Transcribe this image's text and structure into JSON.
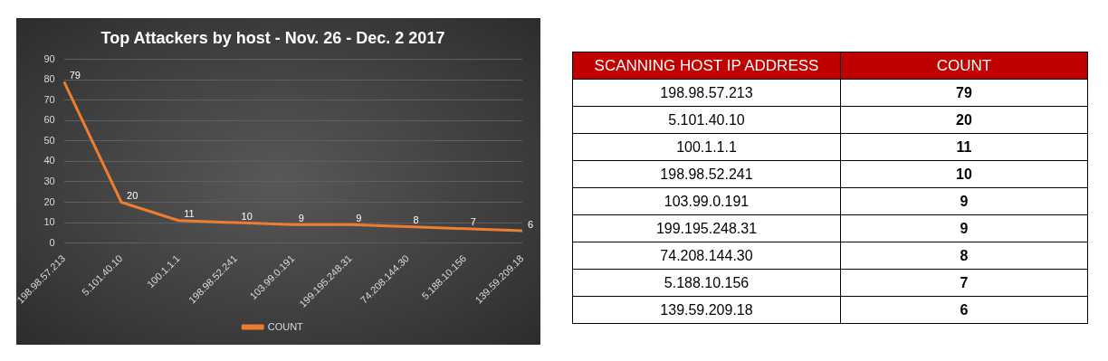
{
  "chart_data": [
    {
      "type": "line",
      "title": "Top Attackers by host - Nov. 26 - Dec. 2 2017",
      "categories": [
        "198.98.57.213",
        "5.101.40.10",
        "100.1.1.1",
        "198.98.52.241",
        "103.99.0.191",
        "199.195.248.31",
        "74.208.144.30",
        "5.188.10.156",
        "139.59.209.18"
      ],
      "series": [
        {
          "name": "COUNT",
          "color": "#ed7d31",
          "values": [
            79,
            20,
            11,
            10,
            9,
            9,
            8,
            7,
            6
          ]
        }
      ],
      "ylim": [
        0,
        90
      ],
      "yticks": [
        0,
        10,
        20,
        30,
        40,
        50,
        60,
        70,
        80,
        90
      ],
      "grid": "y",
      "legend": "bottom",
      "marker": "none",
      "data_labels": true
    },
    {
      "type": "other",
      "xlabel": "SCANNING HOST IP ADDRESS",
      "data_labels": true,
      "categories": [
        "198.98.57.213",
        "5.101.40.10",
        "100.1.1.1",
        "198.98.52.241",
        "103.99.0.191",
        "199.195.248.31",
        "74.208.144.30",
        "5.188.10.156",
        "139.59.209.18"
      ],
      "series": [
        {
          "name": "COUNT",
          "values": [
            79,
            20,
            11,
            10,
            9,
            9,
            8,
            7,
            6
          ]
        }
      ]
    }
  ]
}
